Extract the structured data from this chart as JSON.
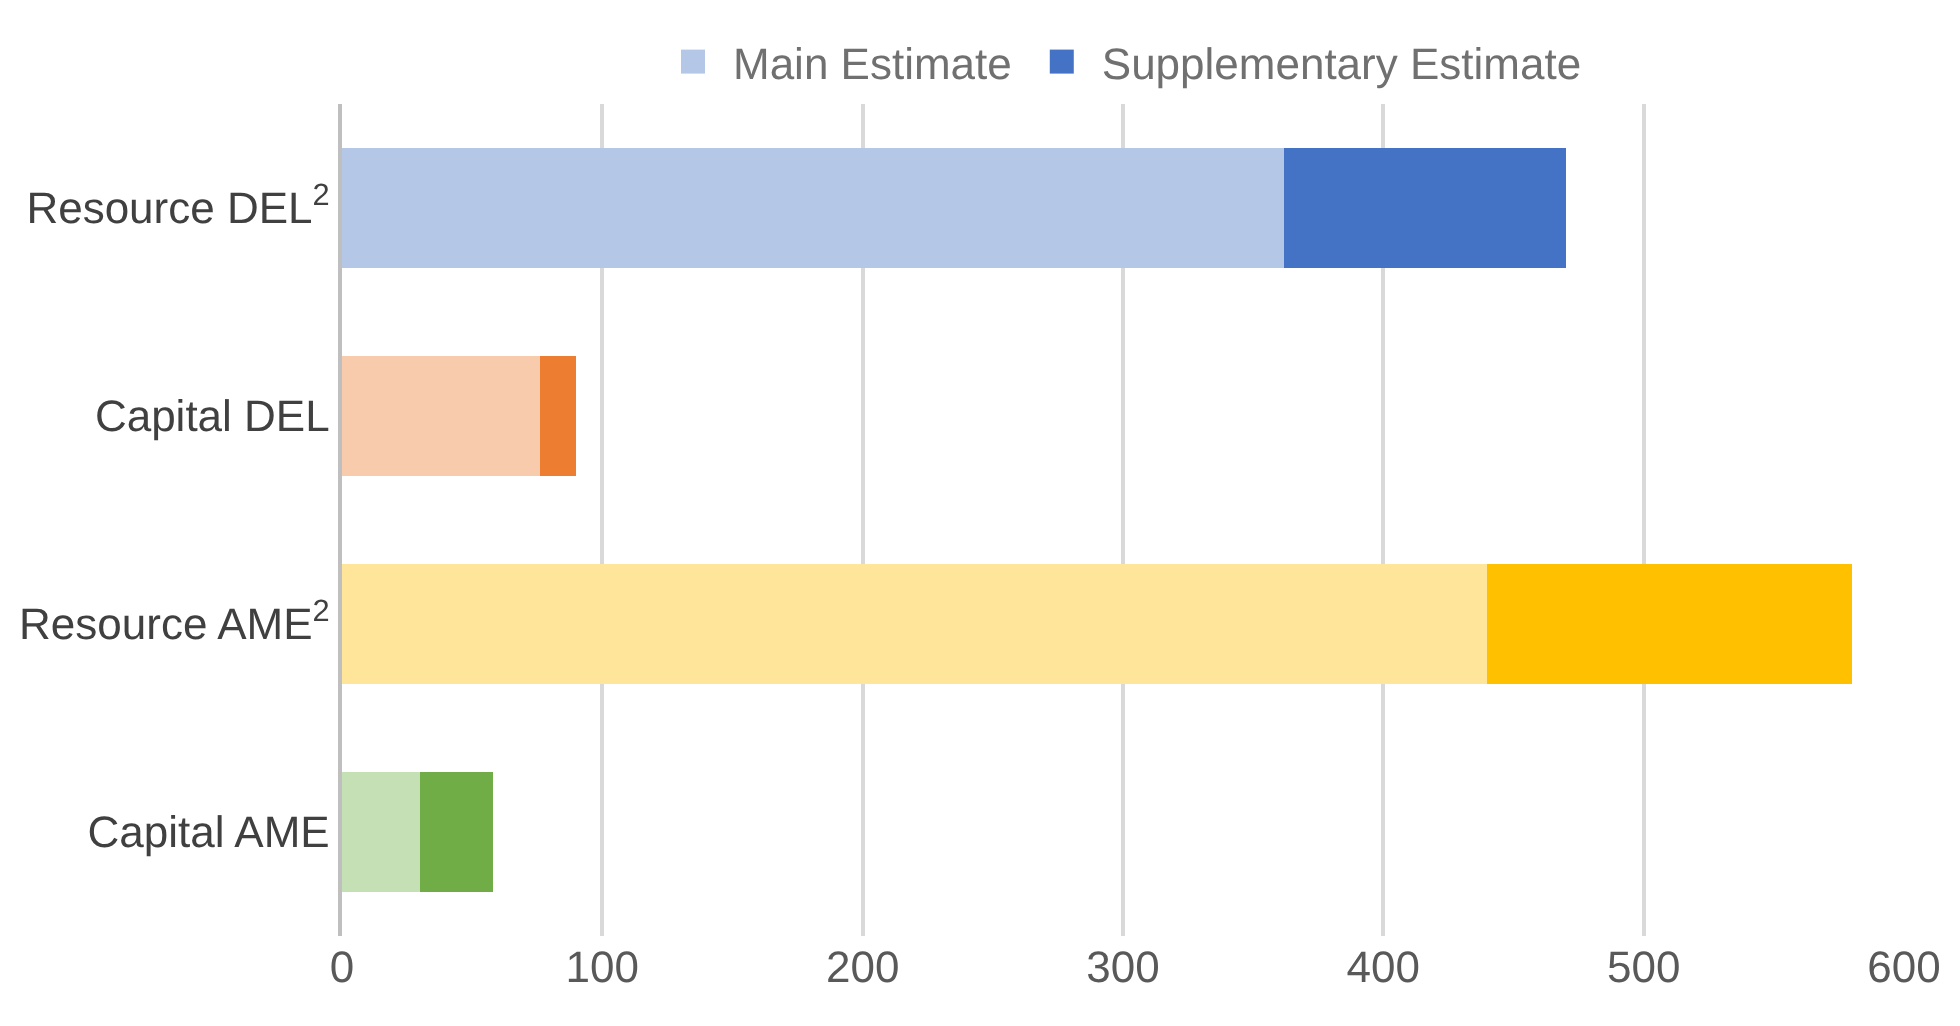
{
  "chart_data": {
    "type": "bar",
    "orientation": "horizontal",
    "stacked": true,
    "categories": [
      "Resource DEL$^{2}$",
      "Capital DEL",
      "Resource AME$^{2}$",
      "Capital AME"
    ],
    "series": [
      {
        "name": "Main Estimate",
        "colors": [
          "#b4c7e7",
          "#f8cbad",
          "#fee599",
          "#c5e0b4"
        ],
        "values": [
          362,
          76,
          440,
          30
        ]
      },
      {
        "name": "Supplementary Estimate",
        "colors": [
          "#4472c4",
          "#ed7d31",
          "#ffc000",
          "#70ad47"
        ],
        "values": [
          108,
          14,
          140,
          28
        ]
      }
    ],
    "xlim": [
      0,
      600
    ],
    "xticks": [
      0,
      100,
      200,
      300,
      400,
      500,
      600
    ],
    "grid": "x",
    "legend": "top"
  }
}
